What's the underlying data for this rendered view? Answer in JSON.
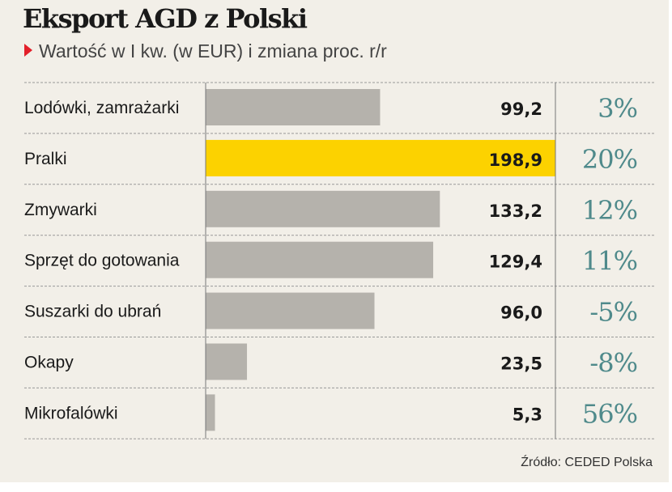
{
  "chart_data": {
    "type": "bar",
    "orientation": "horizontal",
    "title": "Eksport AGD z Polski",
    "subtitle": "Wartość w I kw. (w EUR) i zmiana proc. r/r",
    "categories": [
      "Lodówki, zamrażarki",
      "Pralki",
      "Zmywarki",
      "Sprzęt do gotowania",
      "Suszarki do ubrań",
      "Okapy",
      "Mikrofalówki"
    ],
    "values": [
      99.2,
      198.9,
      133.2,
      129.4,
      96.0,
      23.5,
      5.3
    ],
    "value_labels": [
      "99,2",
      "198,9",
      "133,2",
      "129,4",
      "96,0",
      "23,5",
      "5,3"
    ],
    "change_labels": [
      "3%",
      "20%",
      "12%",
      "11%",
      "-5%",
      "-8%",
      "56%"
    ],
    "change_values": [
      3,
      20,
      12,
      11,
      -5,
      -8,
      56
    ],
    "highlight_index": 1,
    "xlim": [
      0,
      198.9
    ],
    "grid": false,
    "source": "Źródło: CEDED Polska",
    "colors": {
      "bar": "#b5b2ac",
      "highlight": "#fcd200",
      "change": "#4f8a8b",
      "marker": "#e3202a",
      "background": "#f2efe8"
    }
  }
}
